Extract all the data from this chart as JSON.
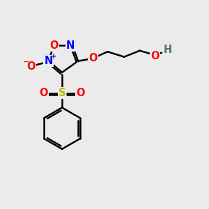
{
  "bg_color": "#ebebeb",
  "atom_colors": {
    "O": "#ff0000",
    "N": "#0000ff",
    "S": "#b8b800",
    "C": "#000000",
    "H": "#507070"
  },
  "bond_color": "#000000",
  "bond_width": 1.8,
  "font_size_atoms": 10.5,
  "font_size_charge": 7
}
